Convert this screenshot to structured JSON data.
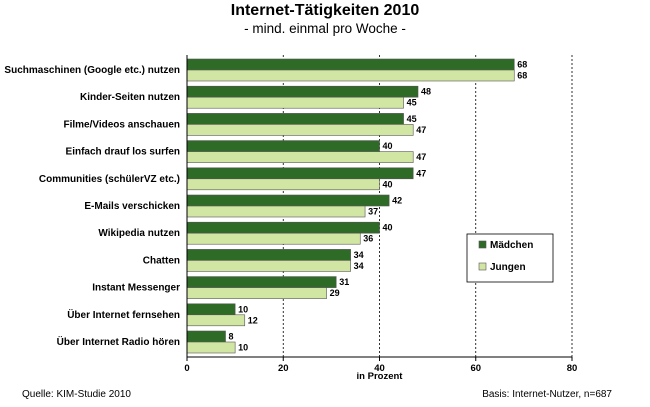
{
  "colors": {
    "maedchen": "#2e6b26",
    "jungen": "#d2e6a3",
    "bar_border": "#555555",
    "grid": "#000000"
  },
  "footer": {
    "source": "Quelle: KIM-Studie 2010",
    "basis": "Basis: Internet-Nutzer,  n=687"
  },
  "chart_data": {
    "type": "bar",
    "orientation": "horizontal",
    "title": "Internet-Tätigkeiten 2010",
    "subtitle": "- mind. einmal pro Woche -",
    "xlabel": "in Prozent",
    "ylabel": "",
    "xlim": [
      0,
      80
    ],
    "ticks": [
      0,
      20,
      40,
      60,
      80
    ],
    "grid": "dashed vertical",
    "legend_position": "right",
    "categories": [
      "Suchmaschinen (Google etc.) nutzen",
      "Kinder-Seiten nutzen",
      "Filme/Videos anschauen",
      "Einfach drauf los surfen",
      "Communities (schülerVZ etc.)",
      "E-Mails verschicken",
      "Wikipedia nutzen",
      "Chatten",
      "Instant Messenger",
      "Über Internet fernsehen",
      "Über Internet Radio hören"
    ],
    "series": [
      {
        "name": "Mädchen",
        "values": [
          68,
          48,
          45,
          40,
          47,
          42,
          40,
          34,
          31,
          10,
          8
        ]
      },
      {
        "name": "Jungen",
        "values": [
          68,
          45,
          47,
          47,
          40,
          37,
          36,
          34,
          29,
          12,
          10
        ]
      }
    ]
  }
}
